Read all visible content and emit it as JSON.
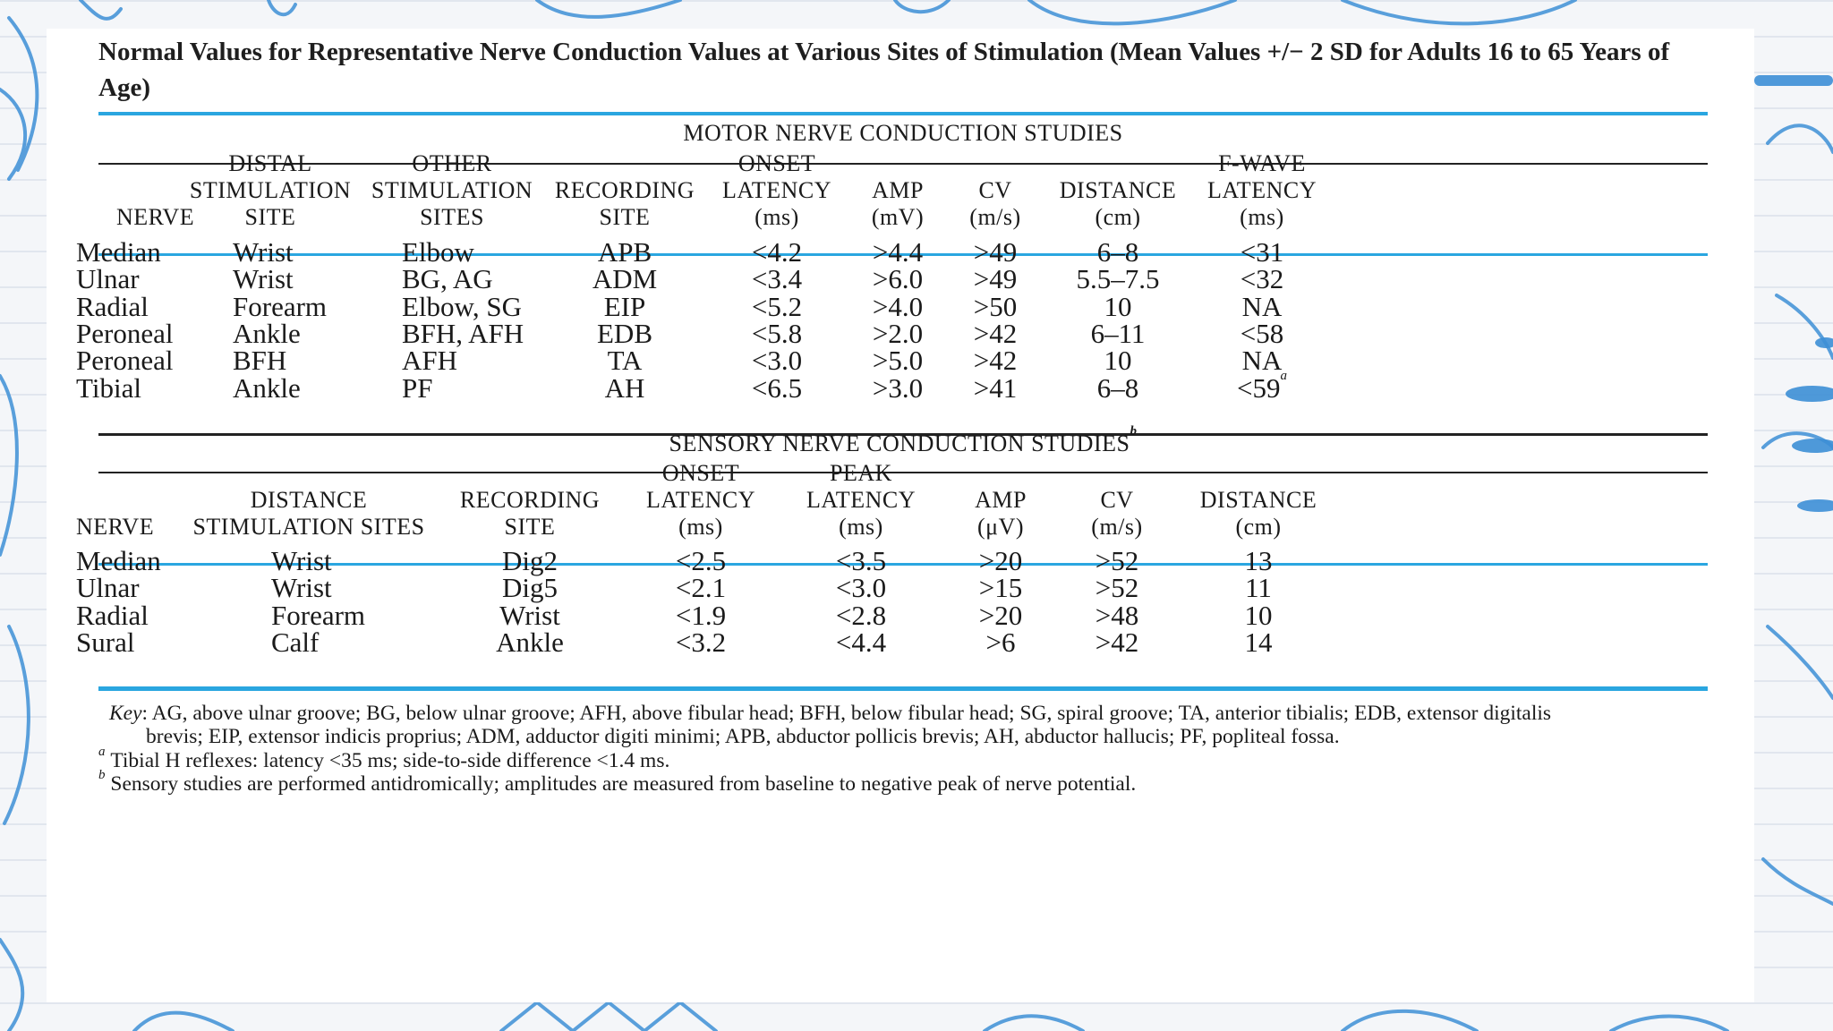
{
  "title": "Normal Values for Representative Nerve Conduction Values at Various Sites of Stimulation (Mean Values +/− 2 SD for Adults 16 to 65 Years of Age)",
  "colors": {
    "accent_rule": "#2aa6e0",
    "doodle": "#3d8fd6",
    "text": "#1a1a1a"
  },
  "motor": {
    "section_title": "MOTOR NERVE CONDUCTION STUDIES",
    "headers": [
      [
        "NERVE"
      ],
      [
        "DISTAL",
        "STIMULATION",
        "SITE"
      ],
      [
        "OTHER",
        "STIMULATION",
        "SITES"
      ],
      [
        "RECORDING",
        "SITE"
      ],
      [
        "ONSET",
        "LATENCY",
        "(ms)"
      ],
      [
        "AMP",
        "(mV)"
      ],
      [
        "CV",
        "(m/s)"
      ],
      [
        "DISTANCE",
        "(cm)"
      ],
      [
        "F-WAVE",
        "LATENCY",
        "(ms)"
      ]
    ],
    "rows": [
      [
        "Median",
        "Wrist",
        "Elbow",
        "APB",
        "<4.2",
        ">4.4",
        ">49",
        "6–8",
        "<31"
      ],
      [
        "Ulnar",
        "Wrist",
        "BG, AG",
        "ADM",
        "<3.4",
        ">6.0",
        ">49",
        "5.5–7.5",
        "<32"
      ],
      [
        "Radial",
        "Forearm",
        "Elbow, SG",
        "EIP",
        "<5.2",
        ">4.0",
        ">50",
        "10",
        "NA"
      ],
      [
        "Peroneal",
        "Ankle",
        "BFH, AFH",
        "EDB",
        "<5.8",
        ">2.0",
        ">42",
        "6–11",
        "<58"
      ],
      [
        "Peroneal",
        "BFH",
        "AFH",
        "TA",
        "<3.0",
        ">5.0",
        ">42",
        "10",
        "NA"
      ],
      [
        "Tibial",
        "Ankle",
        "PF",
        "AH",
        "<6.5",
        ">3.0",
        ">41",
        "6–8",
        "<59"
      ]
    ],
    "last_row_footnote_mark": "a"
  },
  "sensory": {
    "section_title": "SENSORY NERVE CONDUCTION STUDIES",
    "section_footnote_mark": "b",
    "headers": [
      [
        "NERVE"
      ],
      [
        "DISTANCE",
        "STIMULATION SITES"
      ],
      [
        "RECORDING",
        "SITE"
      ],
      [
        "ONSET",
        "LATENCY",
        "(ms)"
      ],
      [
        "PEAK",
        "LATENCY",
        "(ms)"
      ],
      [
        "AMP",
        "(μV)"
      ],
      [
        "CV",
        "(m/s)"
      ],
      [
        "DISTANCE",
        "(cm)"
      ]
    ],
    "rows": [
      [
        "Median",
        "Wrist",
        "Dig2",
        "<2.5",
        "<3.5",
        ">20",
        ">52",
        "13"
      ],
      [
        "Ulnar",
        "Wrist",
        "Dig5",
        "<2.1",
        "<3.0",
        ">15",
        ">52",
        "11"
      ],
      [
        "Radial",
        "Forearm",
        "Wrist",
        "<1.9",
        "<2.8",
        ">20",
        ">48",
        "10"
      ],
      [
        "Sural",
        "Calf",
        "Ankle",
        "<3.2",
        "<4.4",
        ">6",
        ">42",
        "14"
      ]
    ]
  },
  "key": {
    "label": "Key",
    "line1": ": AG, above ulnar groove; BG, below ulnar groove; AFH, above fibular head; BFH, below fibular head; SG, spiral groove; TA, anterior tibialis; EDB, extensor digitalis",
    "line2": "brevis; EIP, extensor indicis proprius; ADM, adductor digiti minimi; APB, abductor pollicis brevis; AH, abductor hallucis; PF, popliteal fossa."
  },
  "footnotes": [
    {
      "mark": "a",
      "text": "Tibial H reflexes: latency <35 ms; side-to-side difference <1.4 ms."
    },
    {
      "mark": "b",
      "text": "Sensory studies are performed antidromically; amplitudes are measured from baseline to negative peak of nerve potential."
    }
  ]
}
